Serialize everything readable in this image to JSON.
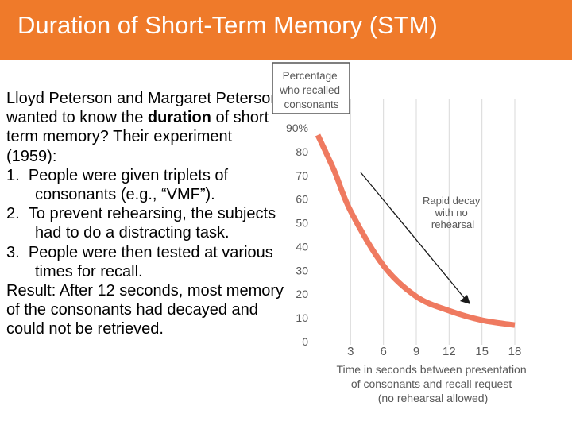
{
  "slide": {
    "title": "Duration of Short-Term Memory (STM)",
    "intro_before": "Lloyd Peterson and Margaret Peterson wanted to know the ",
    "intro_bold": "duration",
    "intro_after": " of short term memory? Their experiment (1959):",
    "steps": [
      {
        "number": "1.",
        "text": "People were given triplets of consonants (e.g., “VMF”)."
      },
      {
        "number": "2.",
        "text": "To prevent rehearsing, the subjects had to do a distracting task."
      },
      {
        "number": "3.",
        "text": "People were then tested at various times for recall."
      }
    ],
    "result": "Result: After 12 seconds, most memory of the consonants had decayed and could not be retrieved."
  },
  "colors": {
    "accent": "#ef7a2a",
    "curve": "#ef7a60",
    "axis_text": "#595959",
    "grid": "#d9d9d9"
  },
  "chart_data": {
    "type": "line",
    "ylabel": [
      "Percentage",
      "who recalled",
      "consonants"
    ],
    "xlabel": [
      "Time in seconds between presentation",
      "of consonants and recall request",
      "(no rehearsal allowed)"
    ],
    "y_tick_labels": [
      "0",
      "10",
      "20",
      "30",
      "40",
      "50",
      "60",
      "70",
      "80",
      "90%"
    ],
    "x_tick_labels": [
      "3",
      "6",
      "9",
      "12",
      "15",
      "18"
    ],
    "xlim": [
      0,
      18
    ],
    "ylim": [
      0,
      90
    ],
    "series": [
      {
        "x": [
          0,
          1.5,
          3,
          6,
          9,
          12,
          15,
          18
        ],
        "values": [
          87,
          72,
          55,
          32,
          19,
          13,
          9,
          7
        ]
      }
    ],
    "annotation": [
      "Rapid decay",
      "with no",
      "rehearsal"
    ],
    "grid": "vertical lines, light gray"
  }
}
